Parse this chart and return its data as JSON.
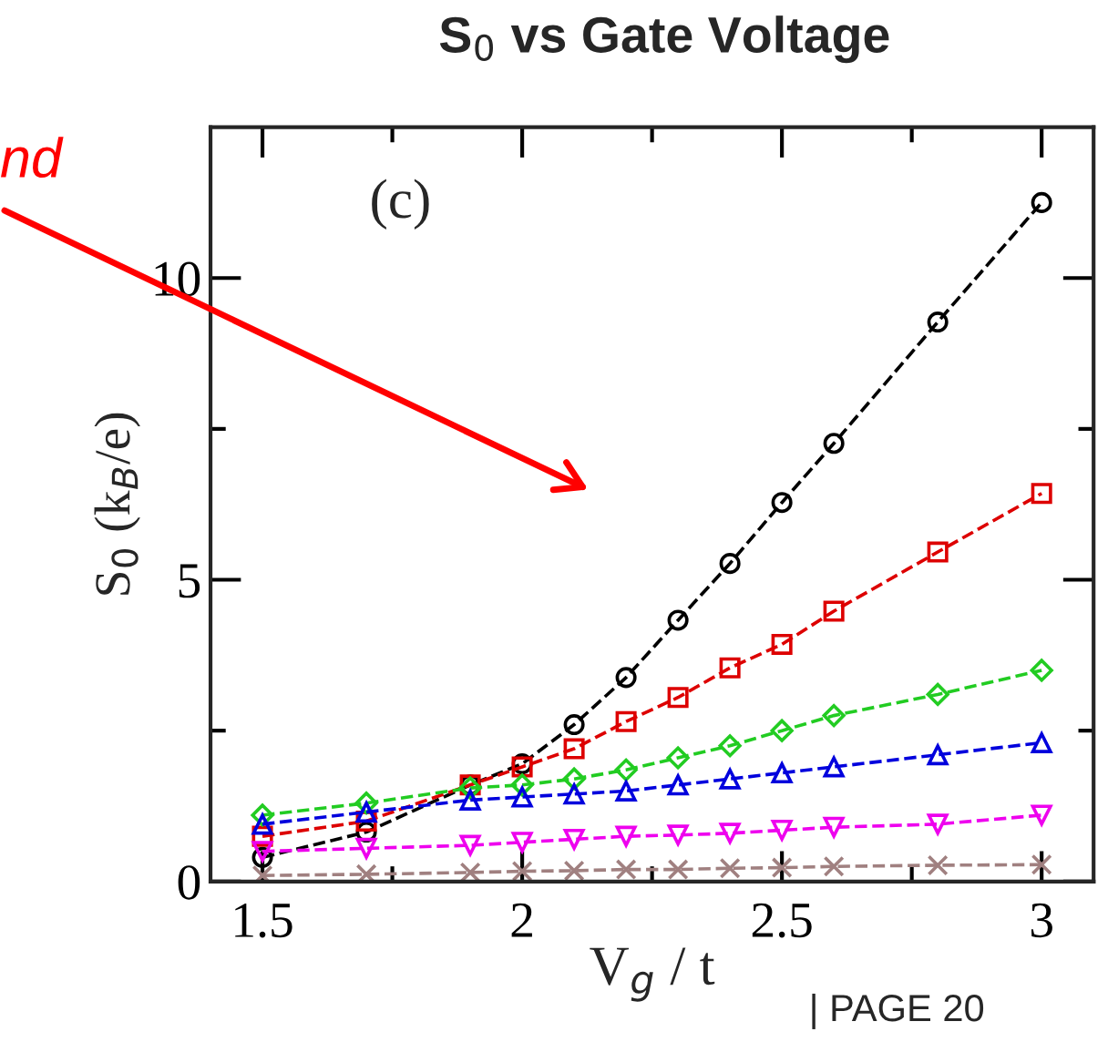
{
  "chart_data": {
    "type": "line",
    "title": "S$_{0}$ vs Gate Voltage",
    "xlabel": "V$_{g}$ / t",
    "ylabel": "S$_{0}$ (k$_{B}$/e)",
    "x": [
      1.5,
      1.7,
      1.9,
      2.0,
      2.1,
      2.2,
      2.3,
      2.4,
      2.5,
      2.6,
      2.8,
      3.0
    ],
    "series": [
      {
        "color": "#000000",
        "marker": "circle",
        "values": [
          0.4,
          0.82,
          1.6,
          1.95,
          2.6,
          3.38,
          4.33,
          5.27,
          6.28,
          7.26,
          9.27,
          11.25
        ]
      },
      {
        "color": "#dd0000",
        "marker": "square",
        "values": [
          0.75,
          1.0,
          1.6,
          1.9,
          2.2,
          2.65,
          3.05,
          3.54,
          3.93,
          4.48,
          5.46,
          6.43
        ]
      },
      {
        "color": "#22cc22",
        "marker": "diamond",
        "values": [
          1.1,
          1.3,
          1.55,
          1.6,
          1.7,
          1.85,
          2.05,
          2.25,
          2.5,
          2.75,
          3.1,
          3.5
        ]
      },
      {
        "color": "#0000dd",
        "marker": "triangle",
        "values": [
          0.95,
          1.15,
          1.35,
          1.4,
          1.45,
          1.5,
          1.6,
          1.7,
          1.8,
          1.9,
          2.1,
          2.3
        ]
      },
      {
        "color": "#ee00ee",
        "marker": "triangle_down",
        "values": [
          0.5,
          0.55,
          0.6,
          0.65,
          0.7,
          0.75,
          0.77,
          0.8,
          0.85,
          0.9,
          0.95,
          1.1
        ]
      },
      {
        "color": "#a08080",
        "marker": "cross",
        "values": [
          0.1,
          0.12,
          0.15,
          0.17,
          0.18,
          0.2,
          0.2,
          0.22,
          0.23,
          0.25,
          0.27,
          0.28
        ]
      }
    ],
    "line_style": "dashed",
    "xlim": [
      1.4,
      3.1
    ],
    "ylim": [
      0,
      12.5
    ],
    "xticks": [
      1.5,
      {
        "value": 1.75,
        "label": null
      },
      2,
      {
        "value": 2.25,
        "label": null
      },
      2.5,
      {
        "value": 2.75,
        "label": null
      },
      3
    ],
    "yticks": [
      0,
      {
        "value": 2.5,
        "label": null
      },
      5,
      {
        "value": 7.5,
        "label": null
      },
      10
    ],
    "grid": false,
    "legend": false,
    "annotations": [
      "(c)",
      "nd",
      "| PAGE 20"
    ]
  }
}
